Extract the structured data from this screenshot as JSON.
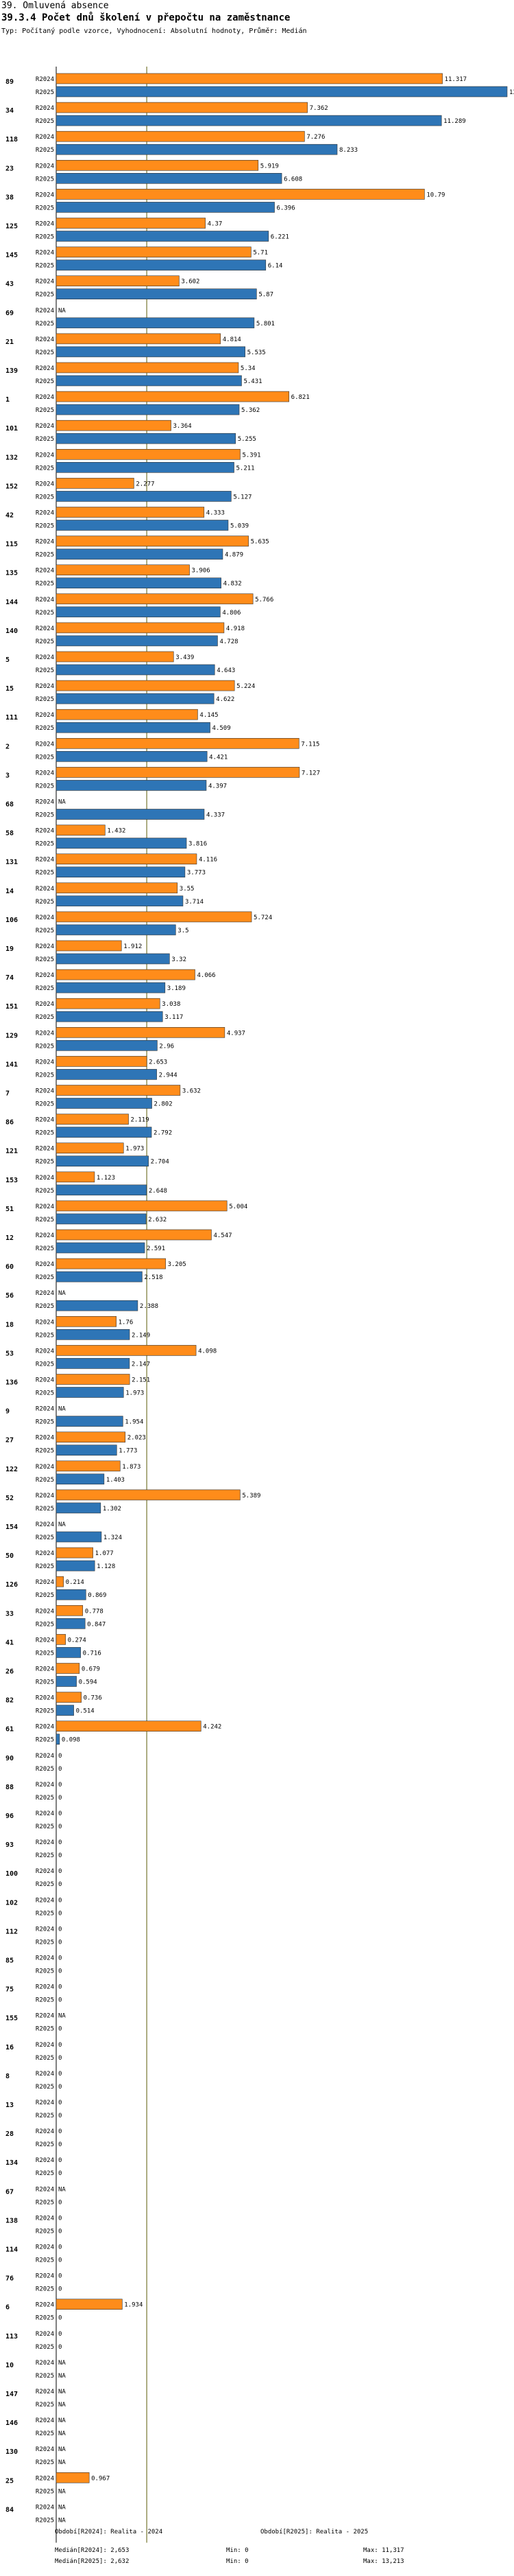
{
  "header": {
    "section": "39. Omluvená absence",
    "title": "39.3.4 Počet dnů školení v přepočtu na zaměstnance",
    "subtitle": "Typ: Počítaný podle vzorce, Vyhodnocení: Absolutní hodnoty, Průměr: Medián"
  },
  "colors": {
    "r2024": "#ff8c1a",
    "r2025": "#2e75b6",
    "median": "#808040",
    "axis": "#000000"
  },
  "chart_data": {
    "type": "bar",
    "orientation": "horizontal",
    "series": [
      {
        "name": "R2024",
        "color": "#ff8c1a"
      },
      {
        "name": "R2025",
        "color": "#2e75b6"
      }
    ],
    "xlim": [
      0,
      13.213
    ],
    "median": 2.653,
    "groups": [
      {
        "id": "89",
        "r2024": "11.317",
        "r2025": "13.213"
      },
      {
        "id": "34",
        "r2024": "7.362",
        "r2025": "11.289"
      },
      {
        "id": "118",
        "r2024": "7.276",
        "r2025": "8.233"
      },
      {
        "id": "23",
        "r2024": "5.919",
        "r2025": "6.608"
      },
      {
        "id": "38",
        "r2024": "10.79",
        "r2025": "6.396"
      },
      {
        "id": "125",
        "r2024": "4.37",
        "r2025": "6.221"
      },
      {
        "id": "145",
        "r2024": "5.71",
        "r2025": "6.14"
      },
      {
        "id": "43",
        "r2024": "3.602",
        "r2025": "5.87"
      },
      {
        "id": "69",
        "r2024": "NA",
        "r2025": "5.801"
      },
      {
        "id": "21",
        "r2024": "4.814",
        "r2025": "5.535"
      },
      {
        "id": "139",
        "r2024": "5.34",
        "r2025": "5.431"
      },
      {
        "id": "1",
        "r2024": "6.821",
        "r2025": "5.362"
      },
      {
        "id": "101",
        "r2024": "3.364",
        "r2025": "5.255"
      },
      {
        "id": "132",
        "r2024": "5.391",
        "r2025": "5.211"
      },
      {
        "id": "152",
        "r2024": "2.277",
        "r2025": "5.127"
      },
      {
        "id": "42",
        "r2024": "4.333",
        "r2025": "5.039"
      },
      {
        "id": "115",
        "r2024": "5.635",
        "r2025": "4.879"
      },
      {
        "id": "135",
        "r2024": "3.906",
        "r2025": "4.832"
      },
      {
        "id": "144",
        "r2024": "5.766",
        "r2025": "4.806"
      },
      {
        "id": "140",
        "r2024": "4.918",
        "r2025": "4.728"
      },
      {
        "id": "5",
        "r2024": "3.439",
        "r2025": "4.643"
      },
      {
        "id": "15",
        "r2024": "5.224",
        "r2025": "4.622"
      },
      {
        "id": "111",
        "r2024": "4.145",
        "r2025": "4.509"
      },
      {
        "id": "2",
        "r2024": "7.115",
        "r2025": "4.421"
      },
      {
        "id": "3",
        "r2024": "7.127",
        "r2025": "4.397"
      },
      {
        "id": "68",
        "r2024": "NA",
        "r2025": "4.337"
      },
      {
        "id": "58",
        "r2024": "1.432",
        "r2025": "3.816"
      },
      {
        "id": "131",
        "r2024": "4.116",
        "r2025": "3.773"
      },
      {
        "id": "14",
        "r2024": "3.55",
        "r2025": "3.714"
      },
      {
        "id": "106",
        "r2024": "5.724",
        "r2025": "3.5"
      },
      {
        "id": "19",
        "r2024": "1.912",
        "r2025": "3.32"
      },
      {
        "id": "74",
        "r2024": "4.066",
        "r2025": "3.189"
      },
      {
        "id": "151",
        "r2024": "3.038",
        "r2025": "3.117"
      },
      {
        "id": "129",
        "r2024": "4.937",
        "r2025": "2.96"
      },
      {
        "id": "141",
        "r2024": "2.653",
        "r2025": "2.944"
      },
      {
        "id": "7",
        "r2024": "3.632",
        "r2025": "2.802"
      },
      {
        "id": "86",
        "r2024": "2.119",
        "r2025": "2.792"
      },
      {
        "id": "121",
        "r2024": "1.973",
        "r2025": "2.704"
      },
      {
        "id": "153",
        "r2024": "1.123",
        "r2025": "2.648"
      },
      {
        "id": "51",
        "r2024": "5.004",
        "r2025": "2.632"
      },
      {
        "id": "12",
        "r2024": "4.547",
        "r2025": "2.591"
      },
      {
        "id": "60",
        "r2024": "3.205",
        "r2025": "2.518"
      },
      {
        "id": "56",
        "r2024": "NA",
        "r2025": "2.388"
      },
      {
        "id": "18",
        "r2024": "1.76",
        "r2025": "2.149"
      },
      {
        "id": "53",
        "r2024": "4.098",
        "r2025": "2.147"
      },
      {
        "id": "136",
        "r2024": "2.151",
        "r2025": "1.973"
      },
      {
        "id": "9",
        "r2024": "NA",
        "r2025": "1.954"
      },
      {
        "id": "27",
        "r2024": "2.023",
        "r2025": "1.773"
      },
      {
        "id": "122",
        "r2024": "1.873",
        "r2025": "1.403"
      },
      {
        "id": "52",
        "r2024": "5.389",
        "r2025": "1.302"
      },
      {
        "id": "154",
        "r2024": "NA",
        "r2025": "1.324"
      },
      {
        "id": "50",
        "r2024": "1.077",
        "r2025": "1.128"
      },
      {
        "id": "126",
        "r2024": "0.214",
        "r2025": "0.869"
      },
      {
        "id": "33",
        "r2024": "0.778",
        "r2025": "0.847"
      },
      {
        "id": "41",
        "r2024": "0.274",
        "r2025": "0.716"
      },
      {
        "id": "26",
        "r2024": "0.679",
        "r2025": "0.594"
      },
      {
        "id": "82",
        "r2024": "0.736",
        "r2025": "0.514"
      },
      {
        "id": "61",
        "r2024": "4.242",
        "r2025": "0.098"
      },
      {
        "id": "90",
        "r2024": "0",
        "r2025": "0"
      },
      {
        "id": "88",
        "r2024": "0",
        "r2025": "0"
      },
      {
        "id": "96",
        "r2024": "0",
        "r2025": "0"
      },
      {
        "id": "93",
        "r2024": "0",
        "r2025": "0"
      },
      {
        "id": "100",
        "r2024": "0",
        "r2025": "0"
      },
      {
        "id": "102",
        "r2024": "0",
        "r2025": "0"
      },
      {
        "id": "112",
        "r2024": "0",
        "r2025": "0"
      },
      {
        "id": "85",
        "r2024": "0",
        "r2025": "0"
      },
      {
        "id": "75",
        "r2024": "0",
        "r2025": "0"
      },
      {
        "id": "155",
        "r2024": "NA",
        "r2025": "0"
      },
      {
        "id": "16",
        "r2024": "0",
        "r2025": "0"
      },
      {
        "id": "8",
        "r2024": "0",
        "r2025": "0"
      },
      {
        "id": "13",
        "r2024": "0",
        "r2025": "0"
      },
      {
        "id": "28",
        "r2024": "0",
        "r2025": "0"
      },
      {
        "id": "134",
        "r2024": "0",
        "r2025": "0"
      },
      {
        "id": "67",
        "r2024": "NA",
        "r2025": "0"
      },
      {
        "id": "138",
        "r2024": "0",
        "r2025": "0"
      },
      {
        "id": "114",
        "r2024": "0",
        "r2025": "0"
      },
      {
        "id": "76",
        "r2024": "0",
        "r2025": "0"
      },
      {
        "id": "6",
        "r2024": "1.934",
        "r2025": "0"
      },
      {
        "id": "113",
        "r2024": "0",
        "r2025": "0"
      },
      {
        "id": "10",
        "r2024": "NA",
        "r2025": "NA"
      },
      {
        "id": "147",
        "r2024": "NA",
        "r2025": "NA"
      },
      {
        "id": "146",
        "r2024": "NA",
        "r2025": "NA"
      },
      {
        "id": "130",
        "r2024": "NA",
        "r2025": "NA"
      },
      {
        "id": "25",
        "r2024": "0.967",
        "r2025": "NA"
      },
      {
        "id": "84",
        "r2024": "NA",
        "r2025": "NA"
      }
    ]
  },
  "footer": {
    "period_2024": "Období[R2024]: Realita - 2024",
    "period_2025": "Období[R2025]: Realita - 2025",
    "median_2024": "Medián[R2024]: 2,653",
    "median_2025": "Medián[R2025]: 2,632",
    "min_2024": "Min: 0",
    "min_2025": "Min: 0",
    "max_2024": "Max: 11,317",
    "max_2025": "Max: 13,213"
  }
}
